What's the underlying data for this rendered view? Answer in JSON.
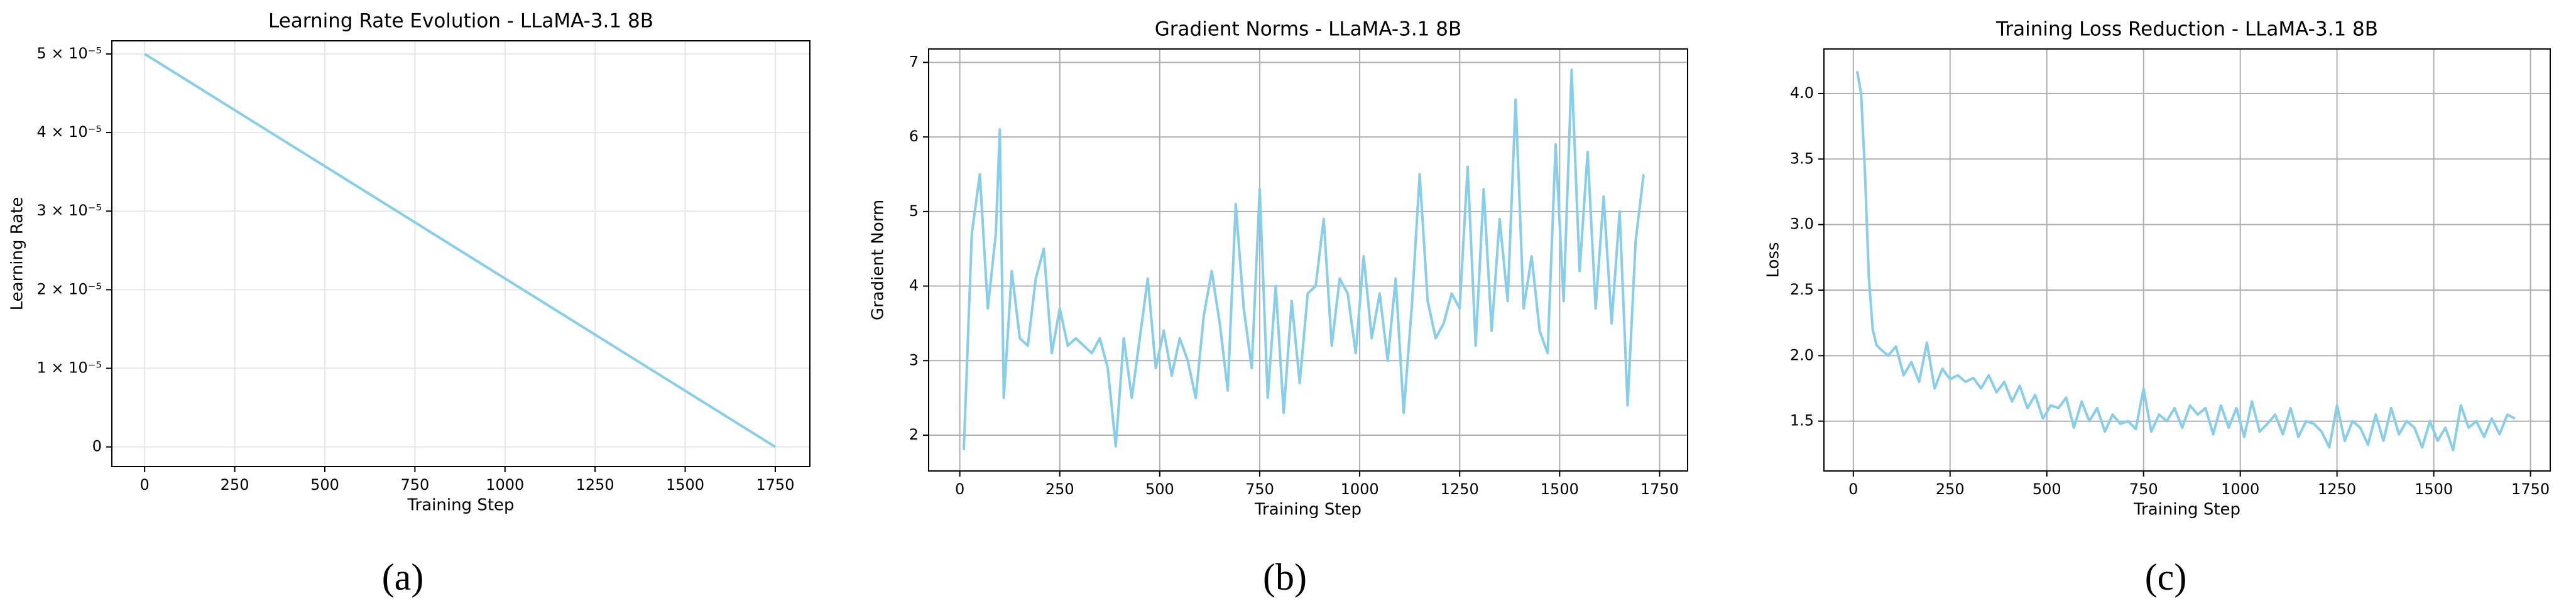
{
  "chart_data": [
    {
      "type": "line",
      "title": "Learning Rate Evolution - LLaMA-3.1 8B",
      "xlabel": "Training Step",
      "ylabel": "Learning Rate",
      "panel_label": "(a)",
      "x": [
        0,
        1750
      ],
      "values": [
        5e-05,
        0
      ],
      "color": "#87ceeb",
      "xlim": [
        -91,
        1846
      ],
      "xticks": [
        0,
        250,
        500,
        750,
        1000,
        1250,
        1500,
        1750
      ],
      "ylim": [
        -2.5e-06,
        5.167e-05
      ],
      "yticks": [
        0,
        {
          "value": 1e-05,
          "label": "1 × 10⁻⁵"
        },
        {
          "value": 2e-05,
          "label": "2 × 10⁻⁵"
        },
        {
          "value": 3e-05,
          "label": "3 × 10⁻⁵"
        },
        {
          "value": 4e-05,
          "label": "4 × 10⁻⁵"
        },
        {
          "value": 5e-05,
          "label": "5 × 10⁻⁵"
        }
      ],
      "grid": true,
      "grid_color": "#e6e6e6"
    },
    {
      "type": "line",
      "title": "Gradient Norms - LLaMA-3.1 8B",
      "xlabel": "Training Step",
      "ylabel": "Gradient Norm",
      "panel_label": "(b)",
      "x": [
        10,
        30,
        50,
        70,
        90,
        100,
        110,
        130,
        150,
        170,
        190,
        210,
        230,
        250,
        270,
        290,
        310,
        330,
        350,
        370,
        390,
        410,
        430,
        450,
        470,
        490,
        510,
        530,
        550,
        570,
        590,
        610,
        630,
        650,
        670,
        690,
        710,
        730,
        750,
        770,
        790,
        810,
        830,
        850,
        870,
        890,
        910,
        930,
        950,
        970,
        990,
        1010,
        1030,
        1050,
        1070,
        1090,
        1110,
        1130,
        1150,
        1170,
        1190,
        1210,
        1230,
        1250,
        1270,
        1290,
        1310,
        1330,
        1350,
        1370,
        1390,
        1410,
        1430,
        1450,
        1470,
        1490,
        1510,
        1530,
        1550,
        1570,
        1590,
        1610,
        1630,
        1650,
        1670,
        1690,
        1710
      ],
      "values": [
        1.8,
        4.7,
        5.5,
        3.7,
        4.7,
        6.1,
        2.5,
        4.2,
        3.3,
        3.2,
        4.1,
        4.5,
        3.1,
        3.7,
        3.2,
        3.3,
        3.2,
        3.1,
        3.3,
        2.9,
        1.85,
        3.3,
        2.5,
        3.3,
        4.1,
        2.9,
        3.4,
        2.8,
        3.3,
        3.0,
        2.5,
        3.6,
        4.2,
        3.5,
        2.6,
        5.1,
        3.7,
        2.9,
        5.3,
        2.5,
        4.0,
        2.3,
        3.8,
        2.7,
        3.9,
        4.0,
        4.9,
        3.2,
        4.1,
        3.9,
        3.1,
        4.4,
        3.3,
        3.9,
        3.0,
        4.1,
        2.3,
        3.7,
        5.5,
        3.8,
        3.3,
        3.5,
        3.9,
        3.7,
        5.6,
        3.2,
        5.3,
        3.4,
        4.9,
        3.8,
        6.5,
        3.7,
        4.4,
        3.4,
        3.1,
        5.9,
        3.8,
        6.9,
        4.2,
        5.8,
        3.7,
        5.2,
        3.5,
        5.0,
        2.4,
        4.6,
        5.5
      ],
      "color": "#87ceeb",
      "xlim": [
        -78,
        1820
      ],
      "xticks": [
        0,
        250,
        500,
        750,
        1000,
        1250,
        1500,
        1750
      ],
      "ylim": [
        1.52,
        7.18
      ],
      "yticks": [
        2,
        3,
        4,
        5,
        6,
        7
      ],
      "grid": true,
      "grid_color": "#b0b0b0"
    },
    {
      "type": "line",
      "title": "Training Loss Reduction - LLaMA-3.1 8B",
      "xlabel": "Training Step",
      "ylabel": "Loss",
      "panel_label": "(c)",
      "x": [
        10,
        20,
        30,
        40,
        50,
        60,
        70,
        90,
        110,
        130,
        150,
        170,
        190,
        210,
        230,
        250,
        270,
        290,
        310,
        330,
        350,
        370,
        390,
        410,
        430,
        450,
        470,
        490,
        510,
        530,
        550,
        570,
        590,
        610,
        630,
        650,
        670,
        690,
        710,
        730,
        750,
        770,
        790,
        810,
        830,
        850,
        870,
        890,
        910,
        930,
        950,
        970,
        990,
        1010,
        1030,
        1050,
        1070,
        1090,
        1110,
        1130,
        1150,
        1170,
        1190,
        1210,
        1230,
        1250,
        1270,
        1290,
        1310,
        1330,
        1350,
        1370,
        1390,
        1410,
        1430,
        1450,
        1470,
        1490,
        1510,
        1530,
        1550,
        1570,
        1590,
        1610,
        1630,
        1650,
        1670,
        1690,
        1710
      ],
      "values": [
        4.17,
        4.0,
        3.4,
        2.6,
        2.2,
        2.08,
        2.05,
        2.0,
        2.07,
        1.85,
        1.95,
        1.8,
        2.1,
        1.75,
        1.9,
        1.82,
        1.85,
        1.8,
        1.83,
        1.75,
        1.85,
        1.72,
        1.8,
        1.65,
        1.77,
        1.6,
        1.7,
        1.52,
        1.62,
        1.6,
        1.68,
        1.45,
        1.65,
        1.5,
        1.6,
        1.42,
        1.55,
        1.48,
        1.5,
        1.44,
        1.75,
        1.42,
        1.55,
        1.5,
        1.6,
        1.45,
        1.62,
        1.55,
        1.6,
        1.4,
        1.62,
        1.45,
        1.6,
        1.38,
        1.65,
        1.42,
        1.48,
        1.55,
        1.4,
        1.6,
        1.38,
        1.5,
        1.48,
        1.42,
        1.3,
        1.62,
        1.35,
        1.5,
        1.45,
        1.32,
        1.55,
        1.35,
        1.6,
        1.4,
        1.5,
        1.45,
        1.3,
        1.5,
        1.35,
        1.45,
        1.28,
        1.62,
        1.45,
        1.5,
        1.38,
        1.52,
        1.4,
        1.55,
        1.52
      ],
      "color": "#87ceeb",
      "xlim": [
        -76,
        1801
      ],
      "xticks": [
        0,
        250,
        500,
        750,
        1000,
        1250,
        1500,
        1750
      ],
      "ylim": [
        1.12,
        4.34
      ],
      "yticks": [
        1.5,
        {
          "value": 2,
          "label": "2.0"
        },
        2.5,
        {
          "value": 3,
          "label": "3.0"
        },
        3.5,
        {
          "value": 4,
          "label": "4.0"
        }
      ],
      "grid": true,
      "grid_color": "#b0b0b0"
    }
  ]
}
